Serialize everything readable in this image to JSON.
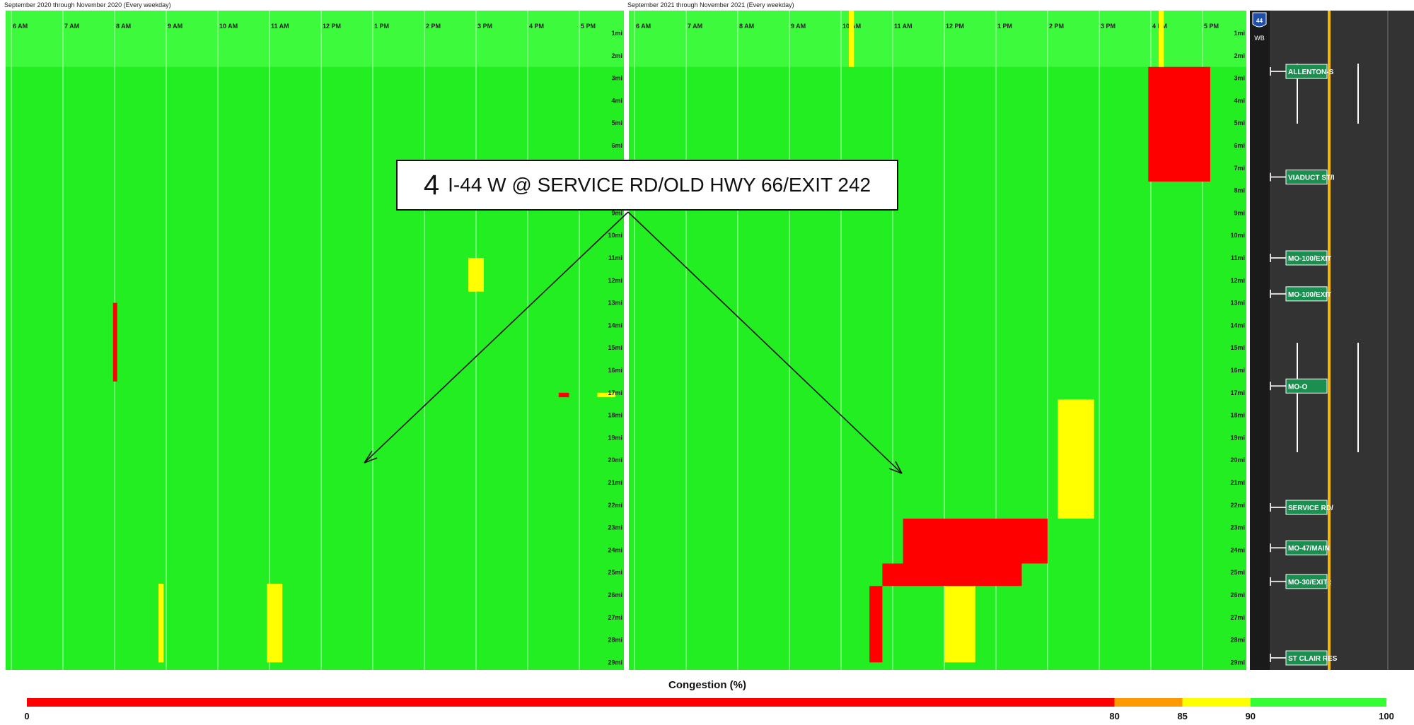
{
  "chart_data": [
    {
      "type": "heatmap",
      "title": "September 2020 through November 2020 (Every weekday)",
      "x_ticks": [
        "6 AM",
        "7 AM",
        "8 AM",
        "9 AM",
        "10 AM",
        "11 AM",
        "12 PM",
        "1 PM",
        "2 PM",
        "3 PM",
        "4 PM",
        "5 PM"
      ],
      "y_ticks": [
        "1mi",
        "2mi",
        "3mi",
        "4mi",
        "5mi",
        "6mi",
        "7mi",
        "8mi",
        "9mi",
        "10mi",
        "11mi",
        "12mi",
        "13mi",
        "14mi",
        "15mi",
        "16mi",
        "17mi",
        "18mi",
        "19mi",
        "20mi",
        "21mi",
        "22mi",
        "23mi",
        "24mi",
        "25mi",
        "26mi",
        "27mi",
        "28mi",
        "29mi"
      ],
      "value_unit": "Congestion (%)",
      "hot_spots": [
        {
          "start_hour": 7.97,
          "end_hour": 8.05,
          "mile_from": 13,
          "mile_to": 16.5,
          "level": "red"
        },
        {
          "start_hour": 14.85,
          "end_hour": 15.15,
          "mile_from": 11,
          "mile_to": 12.5,
          "level": "yellow"
        },
        {
          "start_hour": 16.6,
          "end_hour": 16.8,
          "mile_from": 17,
          "mile_to": 17.2,
          "level": "red"
        },
        {
          "start_hour": 17.35,
          "end_hour": 17.7,
          "mile_from": 17,
          "mile_to": 17.2,
          "level": "yellow"
        },
        {
          "start_hour": 8.85,
          "end_hour": 8.95,
          "mile_from": 25.5,
          "mile_to": 29,
          "level": "yellow"
        },
        {
          "start_hour": 10.95,
          "end_hour": 11.25,
          "mile_from": 25.5,
          "mile_to": 29,
          "level": "yellow"
        }
      ]
    },
    {
      "type": "heatmap",
      "title": "September 2021 through November 2021 (Every weekday)",
      "x_ticks": [
        "6 AM",
        "7 AM",
        "8 AM",
        "9 AM",
        "10 AM",
        "11 AM",
        "12 PM",
        "1 PM",
        "2 PM",
        "3 PM",
        "4 PM",
        "5 PM"
      ],
      "y_ticks": [
        "1mi",
        "2mi",
        "3mi",
        "4mi",
        "5mi",
        "6mi",
        "7mi",
        "8mi",
        "9mi",
        "10mi",
        "11mi",
        "12mi",
        "13mi",
        "14mi",
        "15mi",
        "16mi",
        "17mi",
        "18mi",
        "19mi",
        "20mi",
        "21mi",
        "22mi",
        "23mi",
        "24mi",
        "25mi",
        "26mi",
        "27mi",
        "28mi",
        "29mi"
      ],
      "value_unit": "Congestion (%)",
      "hot_spots": [
        {
          "start_hour": 15.95,
          "end_hour": 17.15,
          "mile_from": 2.5,
          "mile_to": 7.6,
          "level": "red"
        },
        {
          "start_hour": 16.15,
          "end_hour": 16.25,
          "mile_from": 0,
          "mile_to": 2.5,
          "level": "yellow"
        },
        {
          "start_hour": 10.15,
          "end_hour": 10.25,
          "mile_from": 0,
          "mile_to": 2.5,
          "level": "yellow"
        },
        {
          "start_hour": 14.2,
          "end_hour": 14.9,
          "mile_from": 17.3,
          "mile_to": 22.6,
          "level": "yellow"
        },
        {
          "start_hour": 11.2,
          "end_hour": 14.0,
          "mile_from": 22.6,
          "mile_to": 24.6,
          "level": "red"
        },
        {
          "start_hour": 10.8,
          "end_hour": 13.5,
          "mile_from": 24.6,
          "mile_to": 25.6,
          "level": "red"
        },
        {
          "start_hour": 10.55,
          "end_hour": 10.8,
          "mile_from": 25.6,
          "mile_to": 29,
          "level": "red"
        },
        {
          "start_hour": 12.0,
          "end_hour": 12.6,
          "mile_from": 25.6,
          "mile_to": 29,
          "level": "yellow"
        }
      ]
    }
  ],
  "callout": {
    "number": "4",
    "text": "I-44 W @ SERVICE RD/OLD HWY 66/EXIT 242"
  },
  "route": {
    "shield": "44",
    "direction": "WB",
    "exits": [
      "ALLENTON-S",
      "VIADUCT ST/I",
      "MO-100/EXIT",
      "MO-100/EXIT",
      "MO-O",
      "SERVICE RD/",
      "MO-47/MAIN",
      "MO-30/EXIT :",
      "ST CLAIR RES"
    ]
  },
  "legend": {
    "title": "Congestion (%)",
    "ticks": [
      "0",
      "80",
      "85",
      "90",
      "100"
    ],
    "colors": {
      "red": "#ff0000",
      "orange": "#ff9900",
      "yellow": "#ffff00",
      "green": "#33ff33"
    }
  }
}
